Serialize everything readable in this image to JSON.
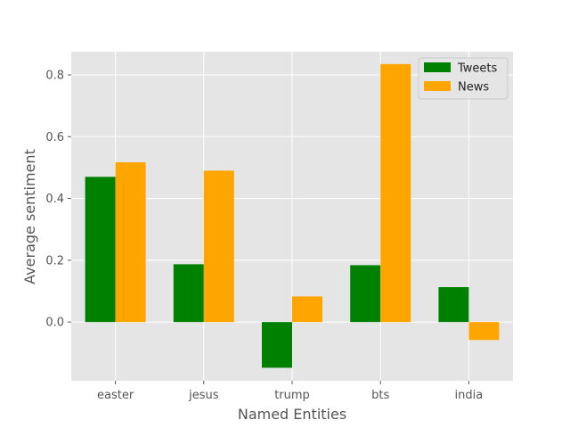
{
  "chart_data": {
    "type": "bar",
    "title": "",
    "xlabel": "Named Entities",
    "ylabel": "Average sentiment",
    "categories": [
      "easter",
      "jesus",
      "trump",
      "bts",
      "india"
    ],
    "series": [
      {
        "name": "Tweets",
        "color": "#008000",
        "values": [
          0.47,
          0.187,
          -0.148,
          0.184,
          0.113
        ]
      },
      {
        "name": "News",
        "color": "#FFA500",
        "values": [
          0.517,
          0.49,
          0.083,
          0.835,
          -0.058
        ]
      }
    ],
    "ylim": [
      -0.19,
      0.875
    ],
    "yticks": [
      0.0,
      0.2,
      0.4,
      0.6,
      0.8
    ],
    "ytick_labels": [
      "0.0",
      "0.2",
      "0.4",
      "0.6",
      "0.8"
    ],
    "grid": true,
    "legend_position": "upper right",
    "style": {
      "plot_background": "#E5E5E5",
      "grid_color": "#FFFFFF"
    }
  }
}
